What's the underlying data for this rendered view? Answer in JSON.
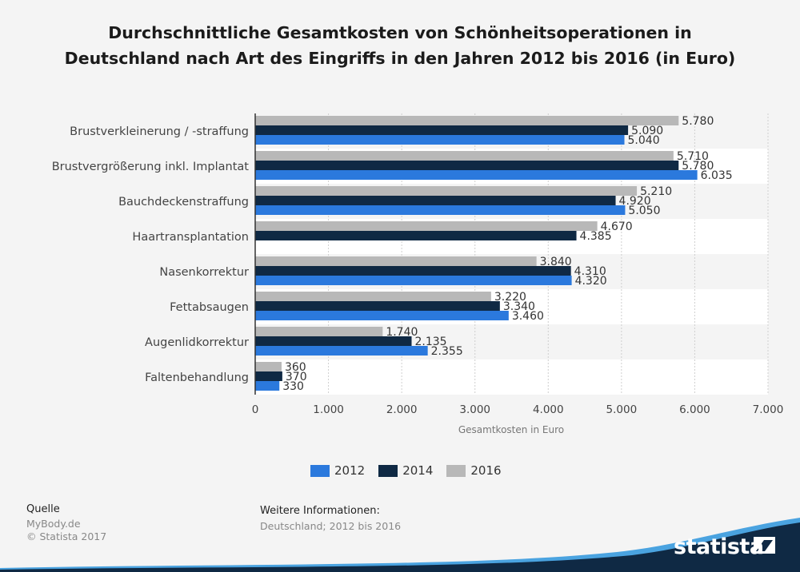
{
  "title": "Durchschnittliche Gesamtkosten von Schönheitsoperationen in Deutschland nach Art des Eingriffs in den Jahren 2012 bis 2016 (in Euro)",
  "chart_data": {
    "type": "bar",
    "orientation": "horizontal",
    "categories": [
      "Brustverkleinerung / -straffung",
      "Brustvergrößerung inkl. Implantat",
      "Bauchdeckenstraffung",
      "Haartransplantation",
      "Nasenkorrektur",
      "Fettabsaugen",
      "Augenlidkorrektur",
      "Faltenbehandlung"
    ],
    "series": [
      {
        "name": "2016",
        "color": "#b8b8b8",
        "values": [
          5780,
          5710,
          5210,
          4670,
          3840,
          3220,
          1740,
          360
        ],
        "labels": [
          "5.780",
          "5.710",
          "5.210",
          "4.670",
          "3.840",
          "3.220",
          "1.740",
          "360"
        ]
      },
      {
        "name": "2014",
        "color": "#0f2944",
        "values": [
          5090,
          5780,
          4920,
          4385,
          4310,
          3340,
          2135,
          370
        ],
        "labels": [
          "5.090",
          "5.780",
          "4.920",
          "4.385",
          "4.310",
          "3.340",
          "2.135",
          "370"
        ]
      },
      {
        "name": "2012",
        "color": "#2b79dd",
        "values": [
          5040,
          6035,
          5050,
          null,
          4320,
          3460,
          2355,
          330
        ],
        "labels": [
          "5.040",
          "6.035",
          "5.050",
          "",
          "4.320",
          "3.460",
          "2.355",
          "330"
        ]
      }
    ],
    "xlabel": "Gesamtkosten in Euro",
    "xlim": [
      0,
      7000
    ],
    "xticks": [
      0,
      1000,
      2000,
      3000,
      4000,
      5000,
      6000,
      7000
    ],
    "xtick_labels": [
      "0",
      "1.000",
      "2.000",
      "3.000",
      "4.000",
      "5.000",
      "6.000",
      "7.000"
    ],
    "grid": true,
    "legend": [
      "2012",
      "2014",
      "2016"
    ],
    "legend_position": "bottom"
  },
  "legend_items": [
    {
      "label": "2012",
      "color": "#2b79dd"
    },
    {
      "label": "2014",
      "color": "#0f2944"
    },
    {
      "label": "2016",
      "color": "#b8b8b8"
    }
  ],
  "source": {
    "heading": "Quelle",
    "lines": [
      "MyBody.de",
      "© Statista 2017"
    ]
  },
  "info": {
    "heading": "Weitere Informationen:",
    "text": "Deutschland; 2012 bis 2016"
  },
  "brand": "statista"
}
